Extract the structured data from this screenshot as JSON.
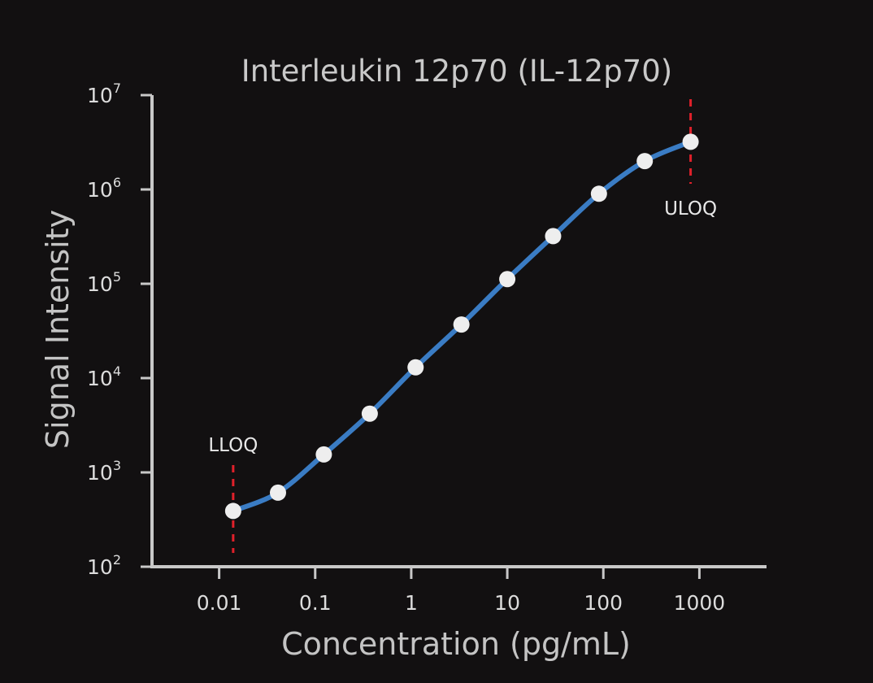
{
  "chart_data": {
    "type": "line",
    "title": "Interleukin 12p70 (IL-12p70)",
    "xlabel": "Concentration (pg/mL)",
    "ylabel": "Signal Intensity",
    "x_scale": "log",
    "y_scale": "log",
    "xlim": [
      0.002,
      5000
    ],
    "ylim": [
      100,
      10000000
    ],
    "x_ticks": [
      {
        "value": 0.01,
        "label": "0.01"
      },
      {
        "value": 0.1,
        "label": "0.1"
      },
      {
        "value": 1,
        "label": "1"
      },
      {
        "value": 10,
        "label": "10"
      },
      {
        "value": 100,
        "label": "100"
      },
      {
        "value": 1000,
        "label": "1000"
      }
    ],
    "y_ticks": [
      {
        "value": 100,
        "base": "10",
        "exp": "2"
      },
      {
        "value": 1000,
        "base": "10",
        "exp": "3"
      },
      {
        "value": 10000,
        "base": "10",
        "exp": "4"
      },
      {
        "value": 100000,
        "base": "10",
        "exp": "5"
      },
      {
        "value": 1000000,
        "base": "10",
        "exp": "6"
      },
      {
        "value": 10000000,
        "base": "10",
        "exp": "7"
      }
    ],
    "series": [
      {
        "color": "#3a7cc4",
        "marker_color": "#eeeeee",
        "points": [
          {
            "x": 0.014,
            "y": 390
          },
          {
            "x": 0.041,
            "y": 610
          },
          {
            "x": 0.123,
            "y": 1550
          },
          {
            "x": 0.37,
            "y": 4200
          },
          {
            "x": 1.11,
            "y": 13000
          },
          {
            "x": 3.33,
            "y": 37000
          },
          {
            "x": 10,
            "y": 112000
          },
          {
            "x": 30,
            "y": 320000
          },
          {
            "x": 90,
            "y": 900000
          },
          {
            "x": 270,
            "y": 2000000
          },
          {
            "x": 810,
            "y": 3200000
          }
        ]
      }
    ],
    "annotations": [
      {
        "label": "LLOQ",
        "x": 0.014,
        "color": "#e0202a"
      },
      {
        "label": "ULOQ",
        "x": 810,
        "color": "#e0202a"
      }
    ],
    "grid": false,
    "legend": "none"
  }
}
